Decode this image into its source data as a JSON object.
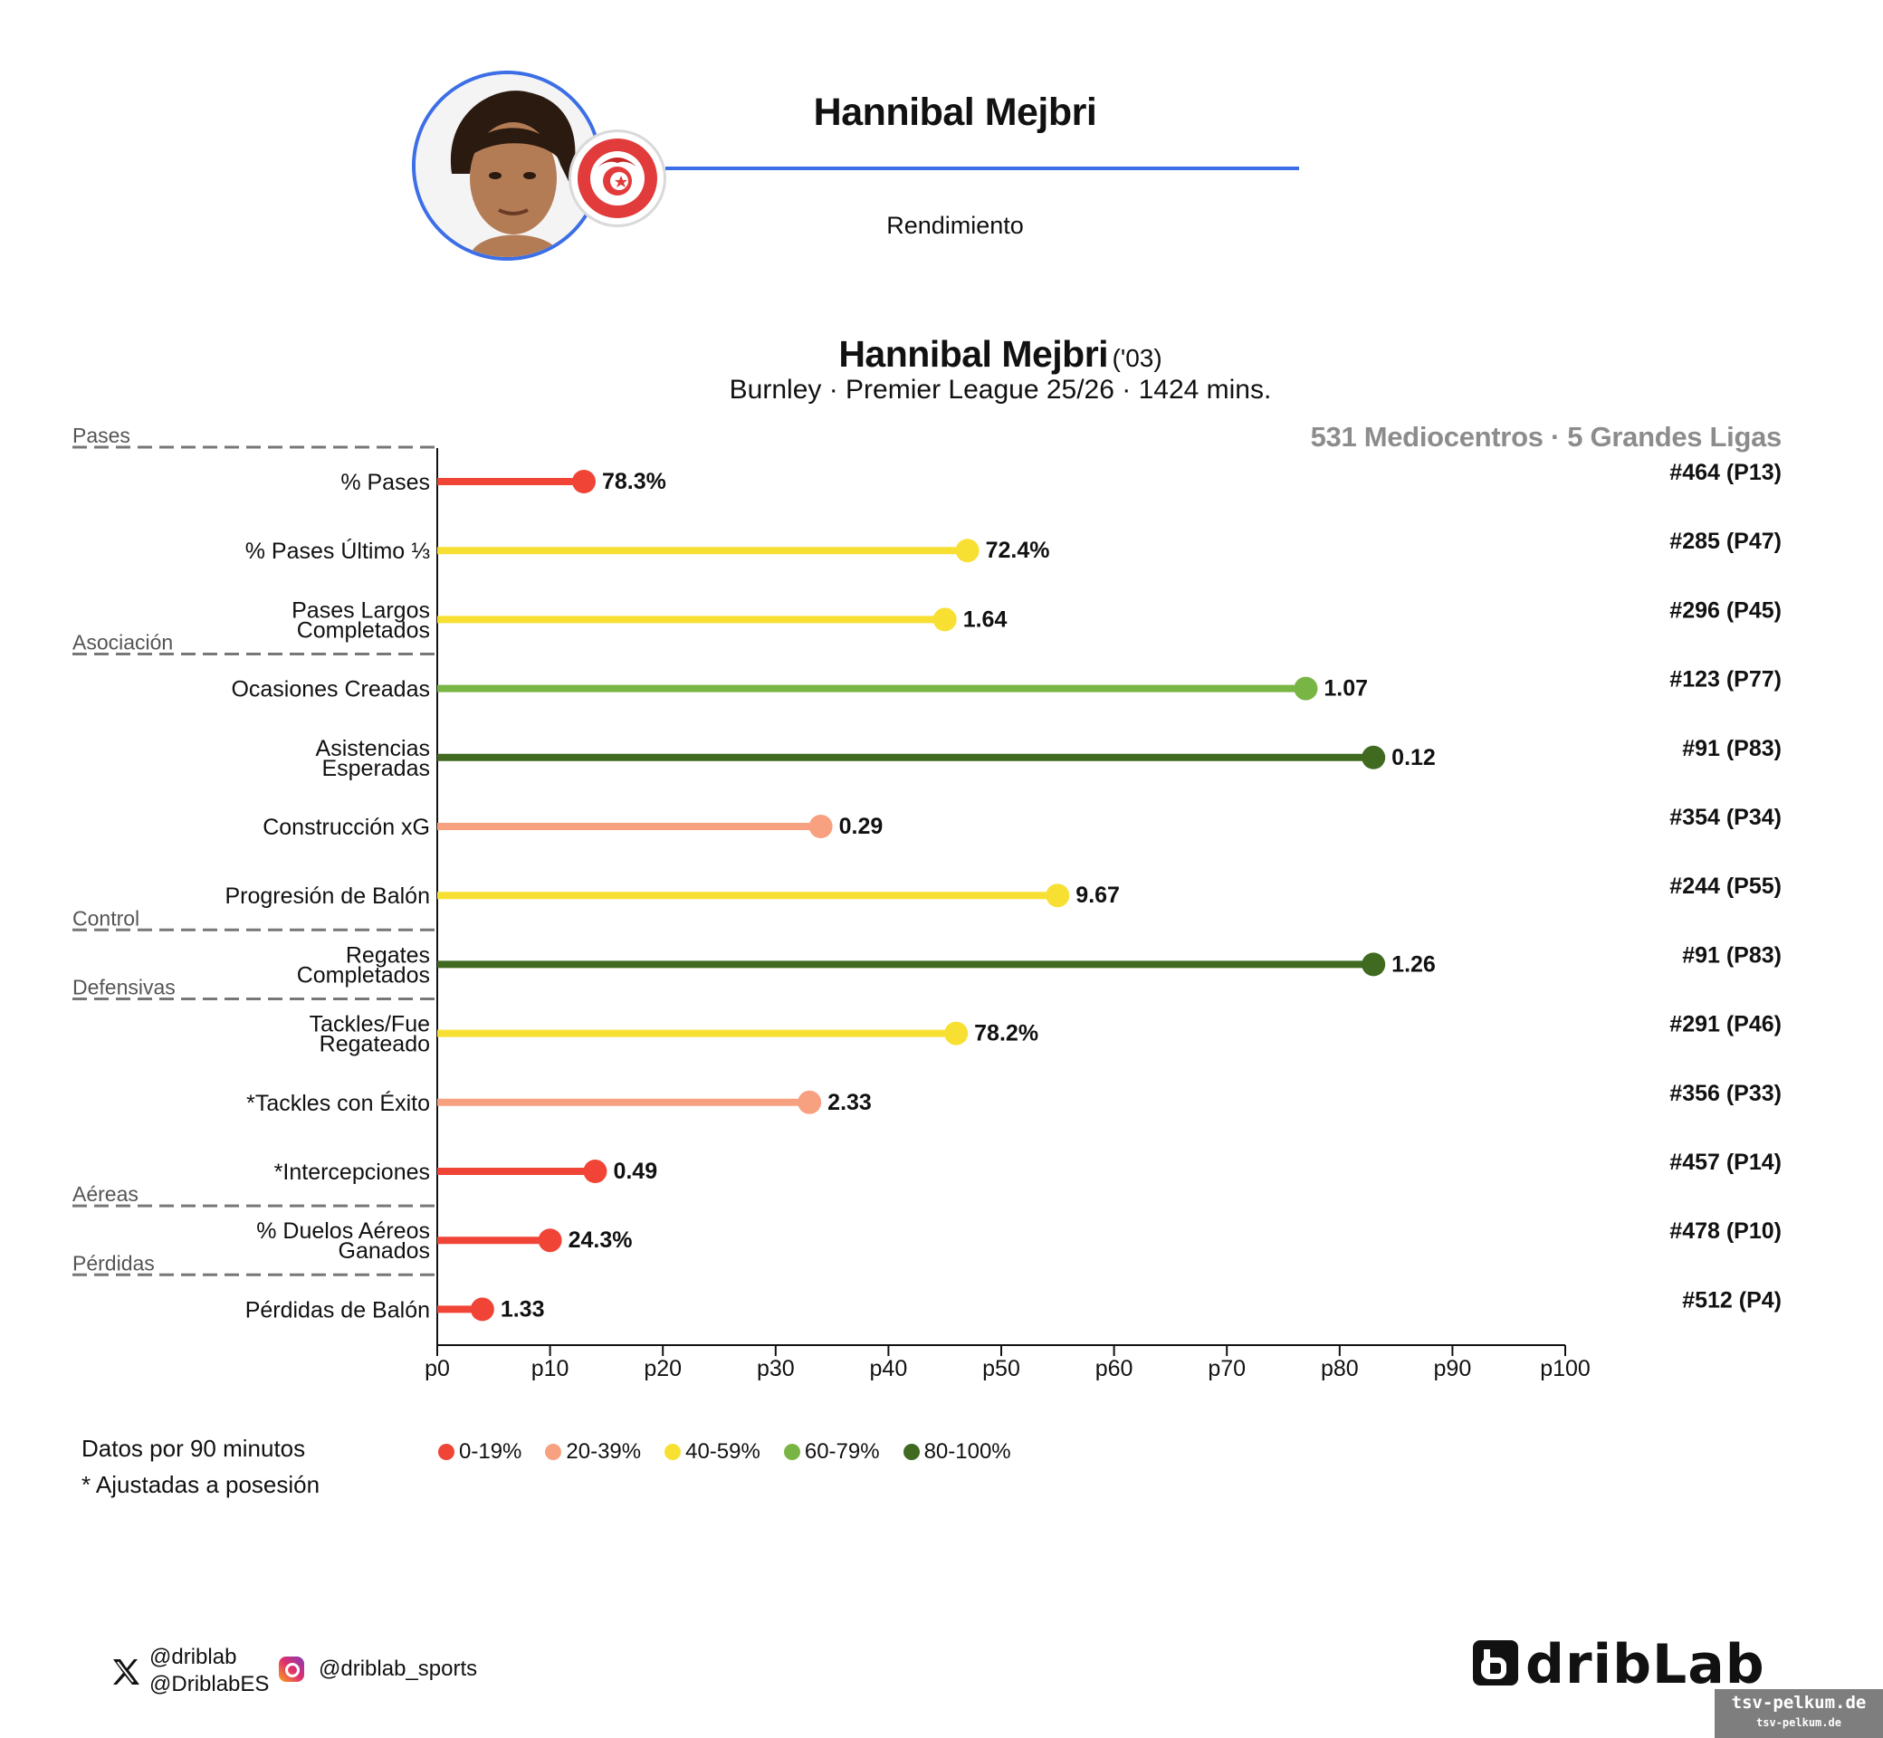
{
  "header": {
    "name": "Hannibal Mejbri",
    "subtitle": "Rendimiento",
    "accent_color": "#3c6ee6"
  },
  "chart_title": {
    "name": "Hannibal Mejbri",
    "year": "('03)",
    "subtitle": "Burnley · Premier League 25/26 · 1424 mins.",
    "reference": "531 Mediocentros · 5 Grandes Ligas"
  },
  "chart_data": {
    "type": "lollipop",
    "xlim": [
      0,
      100
    ],
    "x_ticks": [
      "p0",
      "p10",
      "p20",
      "p30",
      "p40",
      "p50",
      "p60",
      "p70",
      "p80",
      "p90",
      "p100"
    ],
    "metrics": [
      {
        "label": "% Pases",
        "percentile": 13,
        "value": "78.3%",
        "rank": "#464 (P13)"
      },
      {
        "label": "% Pases Último ⅓",
        "percentile": 47,
        "value": "72.4%",
        "rank": "#285 (P47)"
      },
      {
        "label": "Pases Largos\nCompletados",
        "percentile": 45,
        "value": "1.64",
        "rank": "#296 (P45)"
      },
      {
        "label": "Ocasiones Creadas",
        "percentile": 77,
        "value": "1.07",
        "rank": "#123 (P77)"
      },
      {
        "label": "Asistencias\nEsperadas",
        "percentile": 83,
        "value": "0.12",
        "rank": "#91 (P83)"
      },
      {
        "label": "Construcción xG",
        "percentile": 34,
        "value": "0.29",
        "rank": "#354 (P34)"
      },
      {
        "label": "Progresión de Balón",
        "percentile": 55,
        "value": "9.67",
        "rank": "#244 (P55)"
      },
      {
        "label": "Regates\nCompletados",
        "percentile": 83,
        "value": "1.26",
        "rank": "#91 (P83)"
      },
      {
        "label": "Tackles/Fue\nRegateado",
        "percentile": 46,
        "value": "78.2%",
        "rank": "#291 (P46)"
      },
      {
        "label": "*Tackles con Éxito",
        "percentile": 33,
        "value": "2.33",
        "rank": "#356 (P33)"
      },
      {
        "label": "*Intercepciones",
        "percentile": 14,
        "value": "0.49",
        "rank": "#457 (P14)"
      },
      {
        "label": "% Duelos Aéreos\nGanados",
        "percentile": 10,
        "value": "24.3%",
        "rank": "#478 (P10)"
      },
      {
        "label": "Pérdidas de Balón",
        "percentile": 4,
        "value": "1.33",
        "rank": "#512 (P4)"
      }
    ],
    "sections": [
      {
        "label": "Pases",
        "after_index": -1
      },
      {
        "label": "Asociación",
        "after_index": 2
      },
      {
        "label": "Control",
        "after_index": 6
      },
      {
        "label": "Defensivas",
        "after_index": 7
      },
      {
        "label": "Aéreas",
        "after_index": 10
      },
      {
        "label": "Pérdidas",
        "after_index": 11
      }
    ],
    "color_bins": [
      {
        "label": "0-19%",
        "color": "#f04436"
      },
      {
        "label": "20-39%",
        "color": "#f7a180"
      },
      {
        "label": "40-59%",
        "color": "#f8e033"
      },
      {
        "label": "60-79%",
        "color": "#79b545"
      },
      {
        "label": "80-100%",
        "color": "#3f6a20"
      }
    ]
  },
  "notes": {
    "line1": "Datos por 90 minutos",
    "line2": "* Ajustadas a posesión"
  },
  "footer": {
    "twitter_1": "@driblab",
    "twitter_2": "@DriblabES",
    "instagram": "@driblab_sports",
    "brand": "dribLab"
  },
  "watermark": {
    "big": "tsv-pelkum.de",
    "small": "tsv-pelkum.de"
  }
}
